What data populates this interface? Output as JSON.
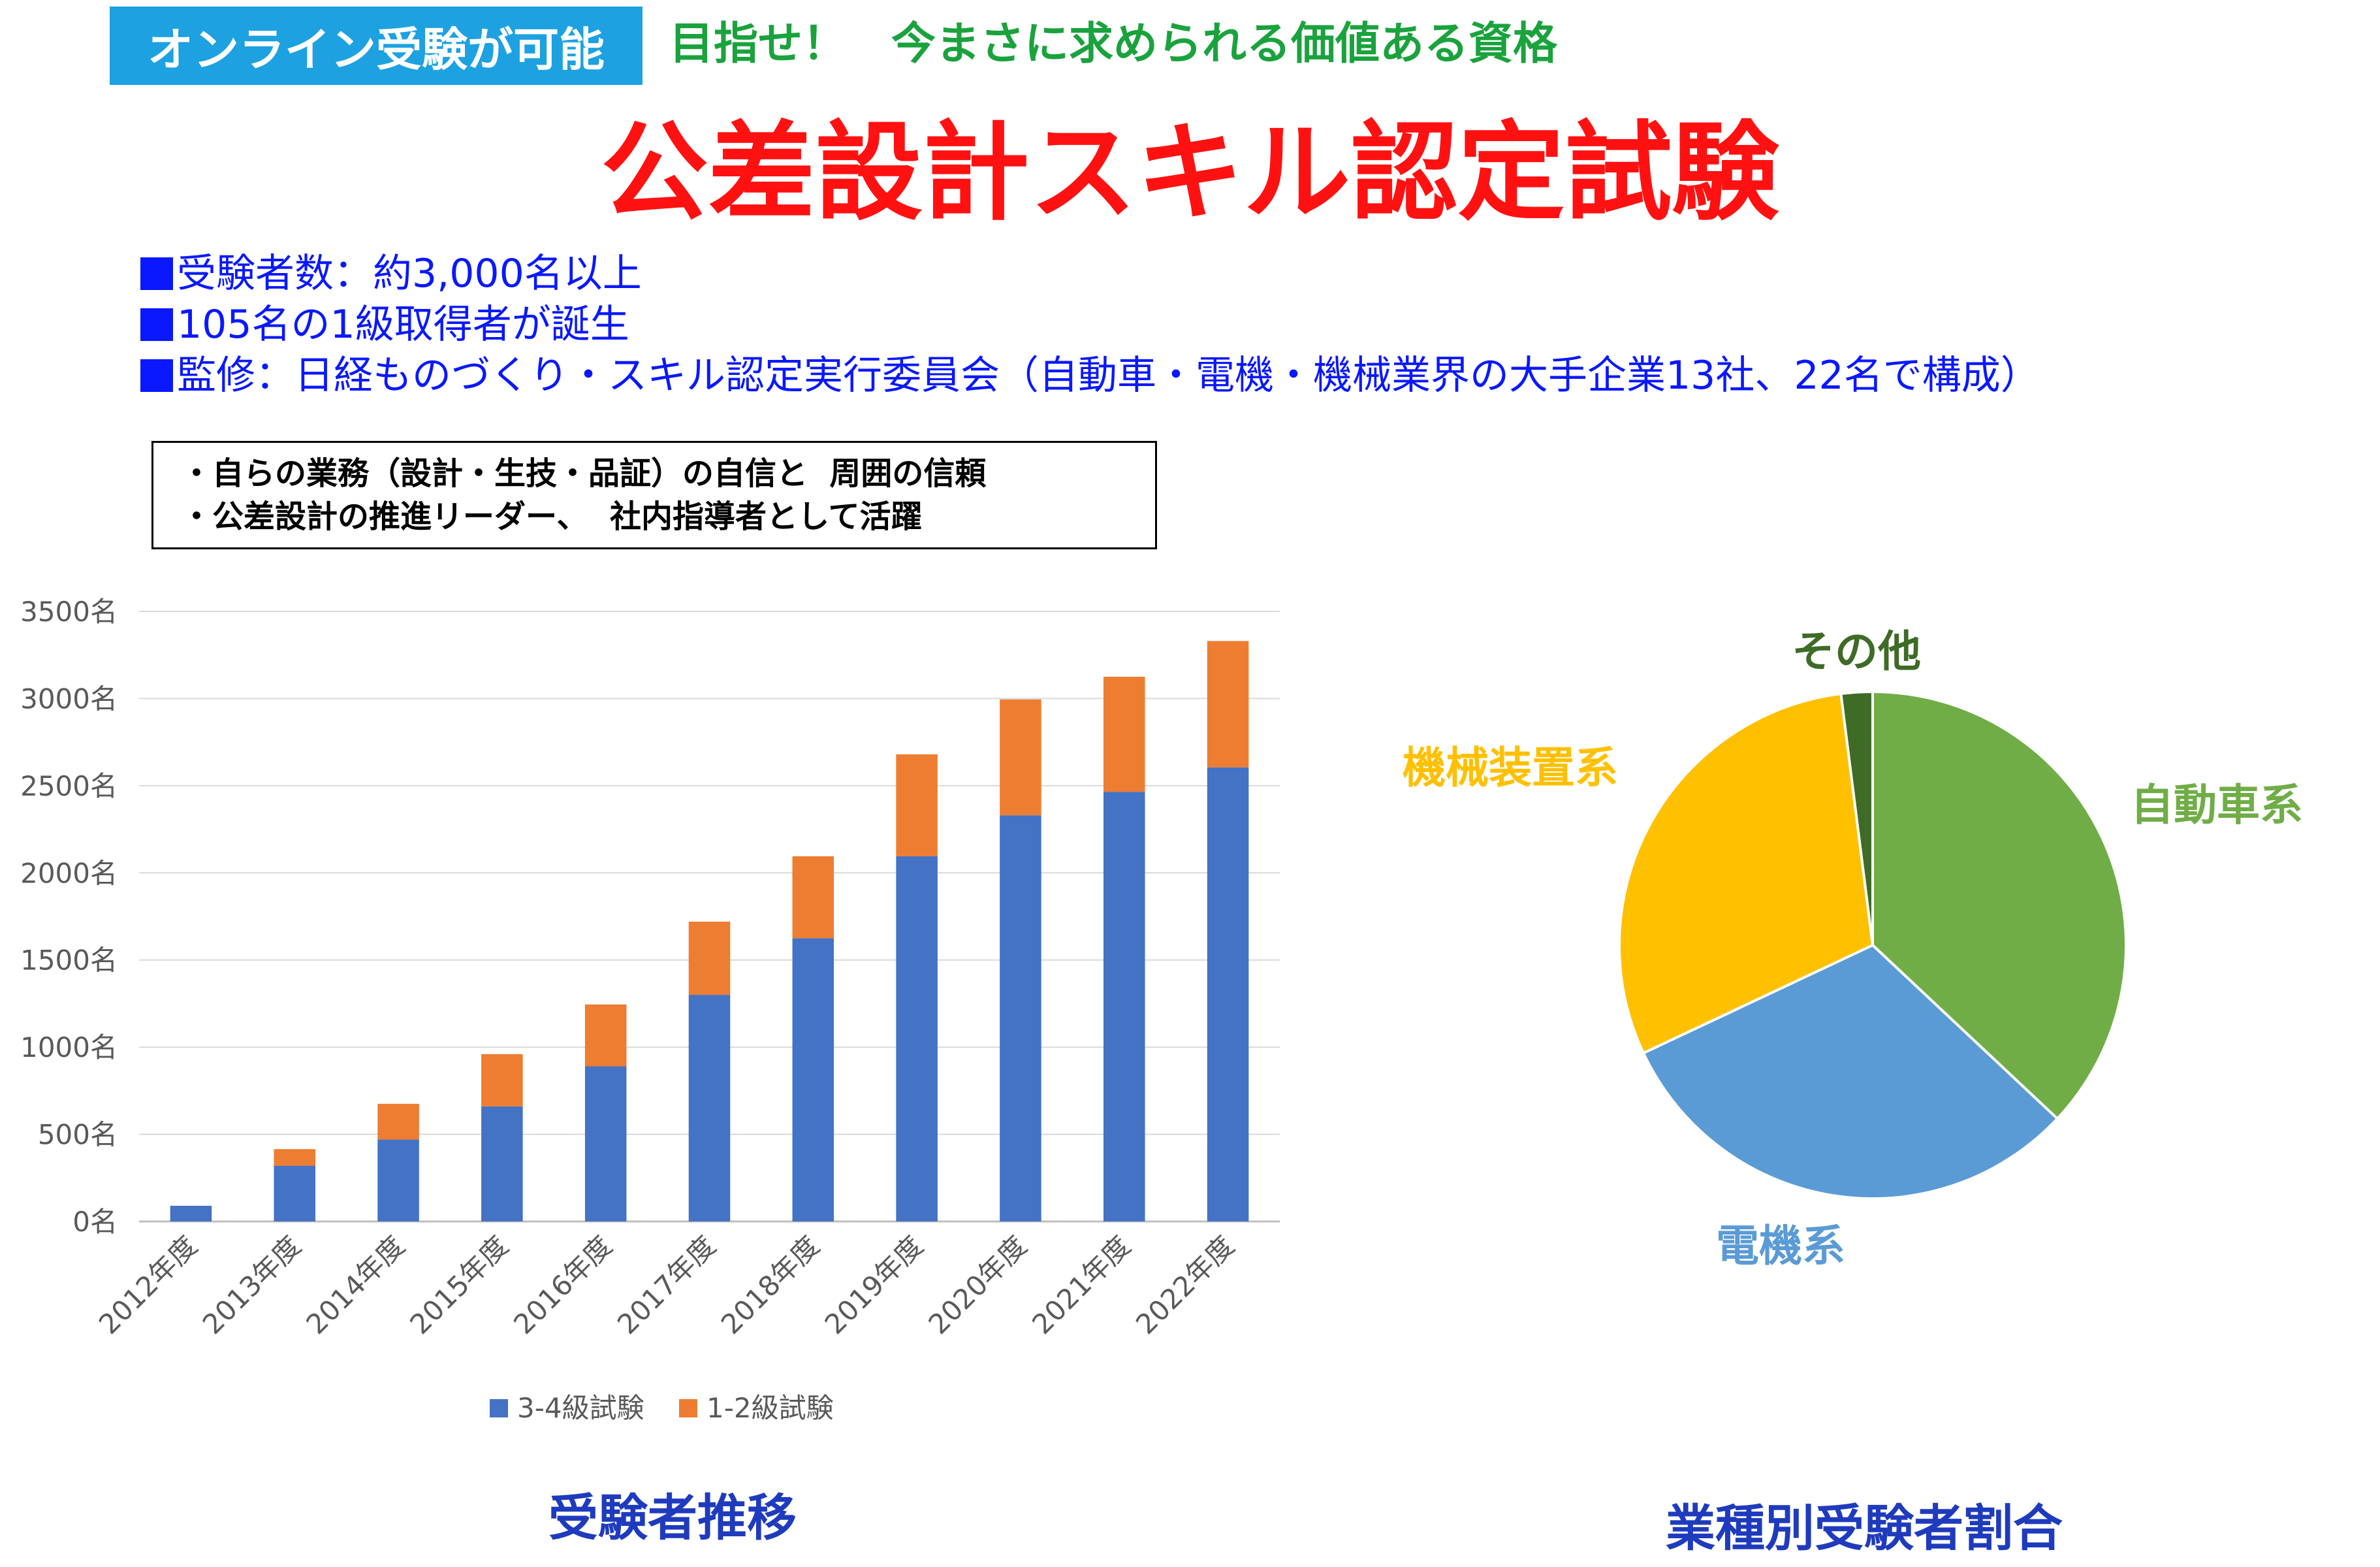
{
  "header": {
    "badge": "オンライン受験が可能",
    "tagline": "目指せ！　今まさに求められる価値ある資格",
    "title": "公差設計スキル認定試験"
  },
  "info": [
    "受験者数：約3,000名以上",
    "105名の1級取得者が誕生",
    "監修：日経ものづくり・スキル認定実行委員会（自動車・電機・機械業界の大手企業13社、22名で構成）"
  ],
  "callout": [
    "・自らの業務（設計・生技・品証）の自信と  周囲の信頼",
    "・公差設計の推進リーダー、  社内指導者として活躍"
  ],
  "captions": {
    "bar": "受験者推移",
    "pie": "業種別受験者割合"
  },
  "colors": {
    "badge": "#1da1e0",
    "tagline": "#1aa23d",
    "title": "#ff1111",
    "info": "#0a18ff",
    "caption": "#1f3bbd"
  },
  "chart_data": [
    {
      "type": "bar",
      "stacked": true,
      "categories": [
        "2012年度",
        "2013年度",
        "2014年度",
        "2015年度",
        "2016年度",
        "2017年度",
        "2018年度",
        "2019年度",
        "2020年度",
        "2021年度",
        "2022年度"
      ],
      "series": [
        {
          "name": "3-4級試験",
          "color": "#4472c4",
          "values": [
            90,
            320,
            470,
            660,
            890,
            1300,
            1625,
            2095,
            2330,
            2465,
            2605
          ]
        },
        {
          "name": "1-2級試験",
          "color": "#ed7d31",
          "values": [
            0,
            95,
            205,
            300,
            355,
            420,
            470,
            585,
            665,
            660,
            725
          ]
        }
      ],
      "ylim": [
        0,
        3500
      ],
      "yticks": [
        "0名",
        "500名",
        "1000名",
        "1500名",
        "2000名",
        "2500名",
        "3000名",
        "3500名"
      ],
      "grid": true,
      "legend": "bottom"
    },
    {
      "type": "pie",
      "labels": [
        "自動車系",
        "電機系",
        "機械装置系",
        "その他"
      ],
      "values": [
        37,
        31,
        30,
        2
      ],
      "colors": [
        "#70ad47",
        "#5b9bd5",
        "#ffc000",
        "#3e6b26"
      ],
      "label_colors": [
        "#70ad47",
        "#5b9bd5",
        "#ffc000",
        "#3e6b26"
      ]
    }
  ]
}
